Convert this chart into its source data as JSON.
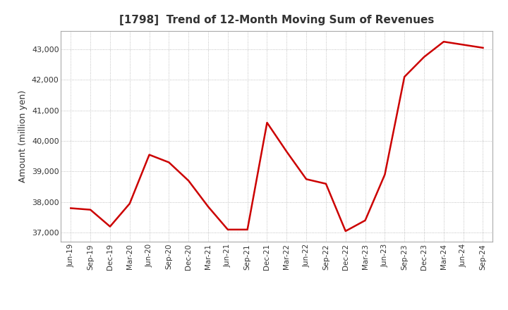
{
  "title": "[1798]  Trend of 12-Month Moving Sum of Revenues",
  "ylabel": "Amount (million yen)",
  "background_color": "#ffffff",
  "plot_bg_color": "#ffffff",
  "grid_color": "#b0b0b0",
  "line_color": "#cc0000",
  "ylim": [
    36700,
    43600
  ],
  "yticks": [
    37000,
    38000,
    39000,
    40000,
    41000,
    42000,
    43000
  ],
  "x_labels": [
    "Jun-19",
    "Sep-19",
    "Dec-19",
    "Mar-20",
    "Jun-20",
    "Sep-20",
    "Dec-20",
    "Mar-21",
    "Jun-21",
    "Sep-21",
    "Dec-21",
    "Mar-22",
    "Jun-22",
    "Sep-22",
    "Dec-22",
    "Mar-23",
    "Jun-23",
    "Sep-23",
    "Dec-23",
    "Mar-24",
    "Jun-24",
    "Sep-24"
  ],
  "values": [
    37800,
    37750,
    37200,
    37950,
    39550,
    39300,
    38700,
    37850,
    37100,
    37100,
    40600,
    39650,
    38750,
    38600,
    37050,
    37400,
    38900,
    42100,
    42750,
    43250,
    43150,
    43050
  ]
}
